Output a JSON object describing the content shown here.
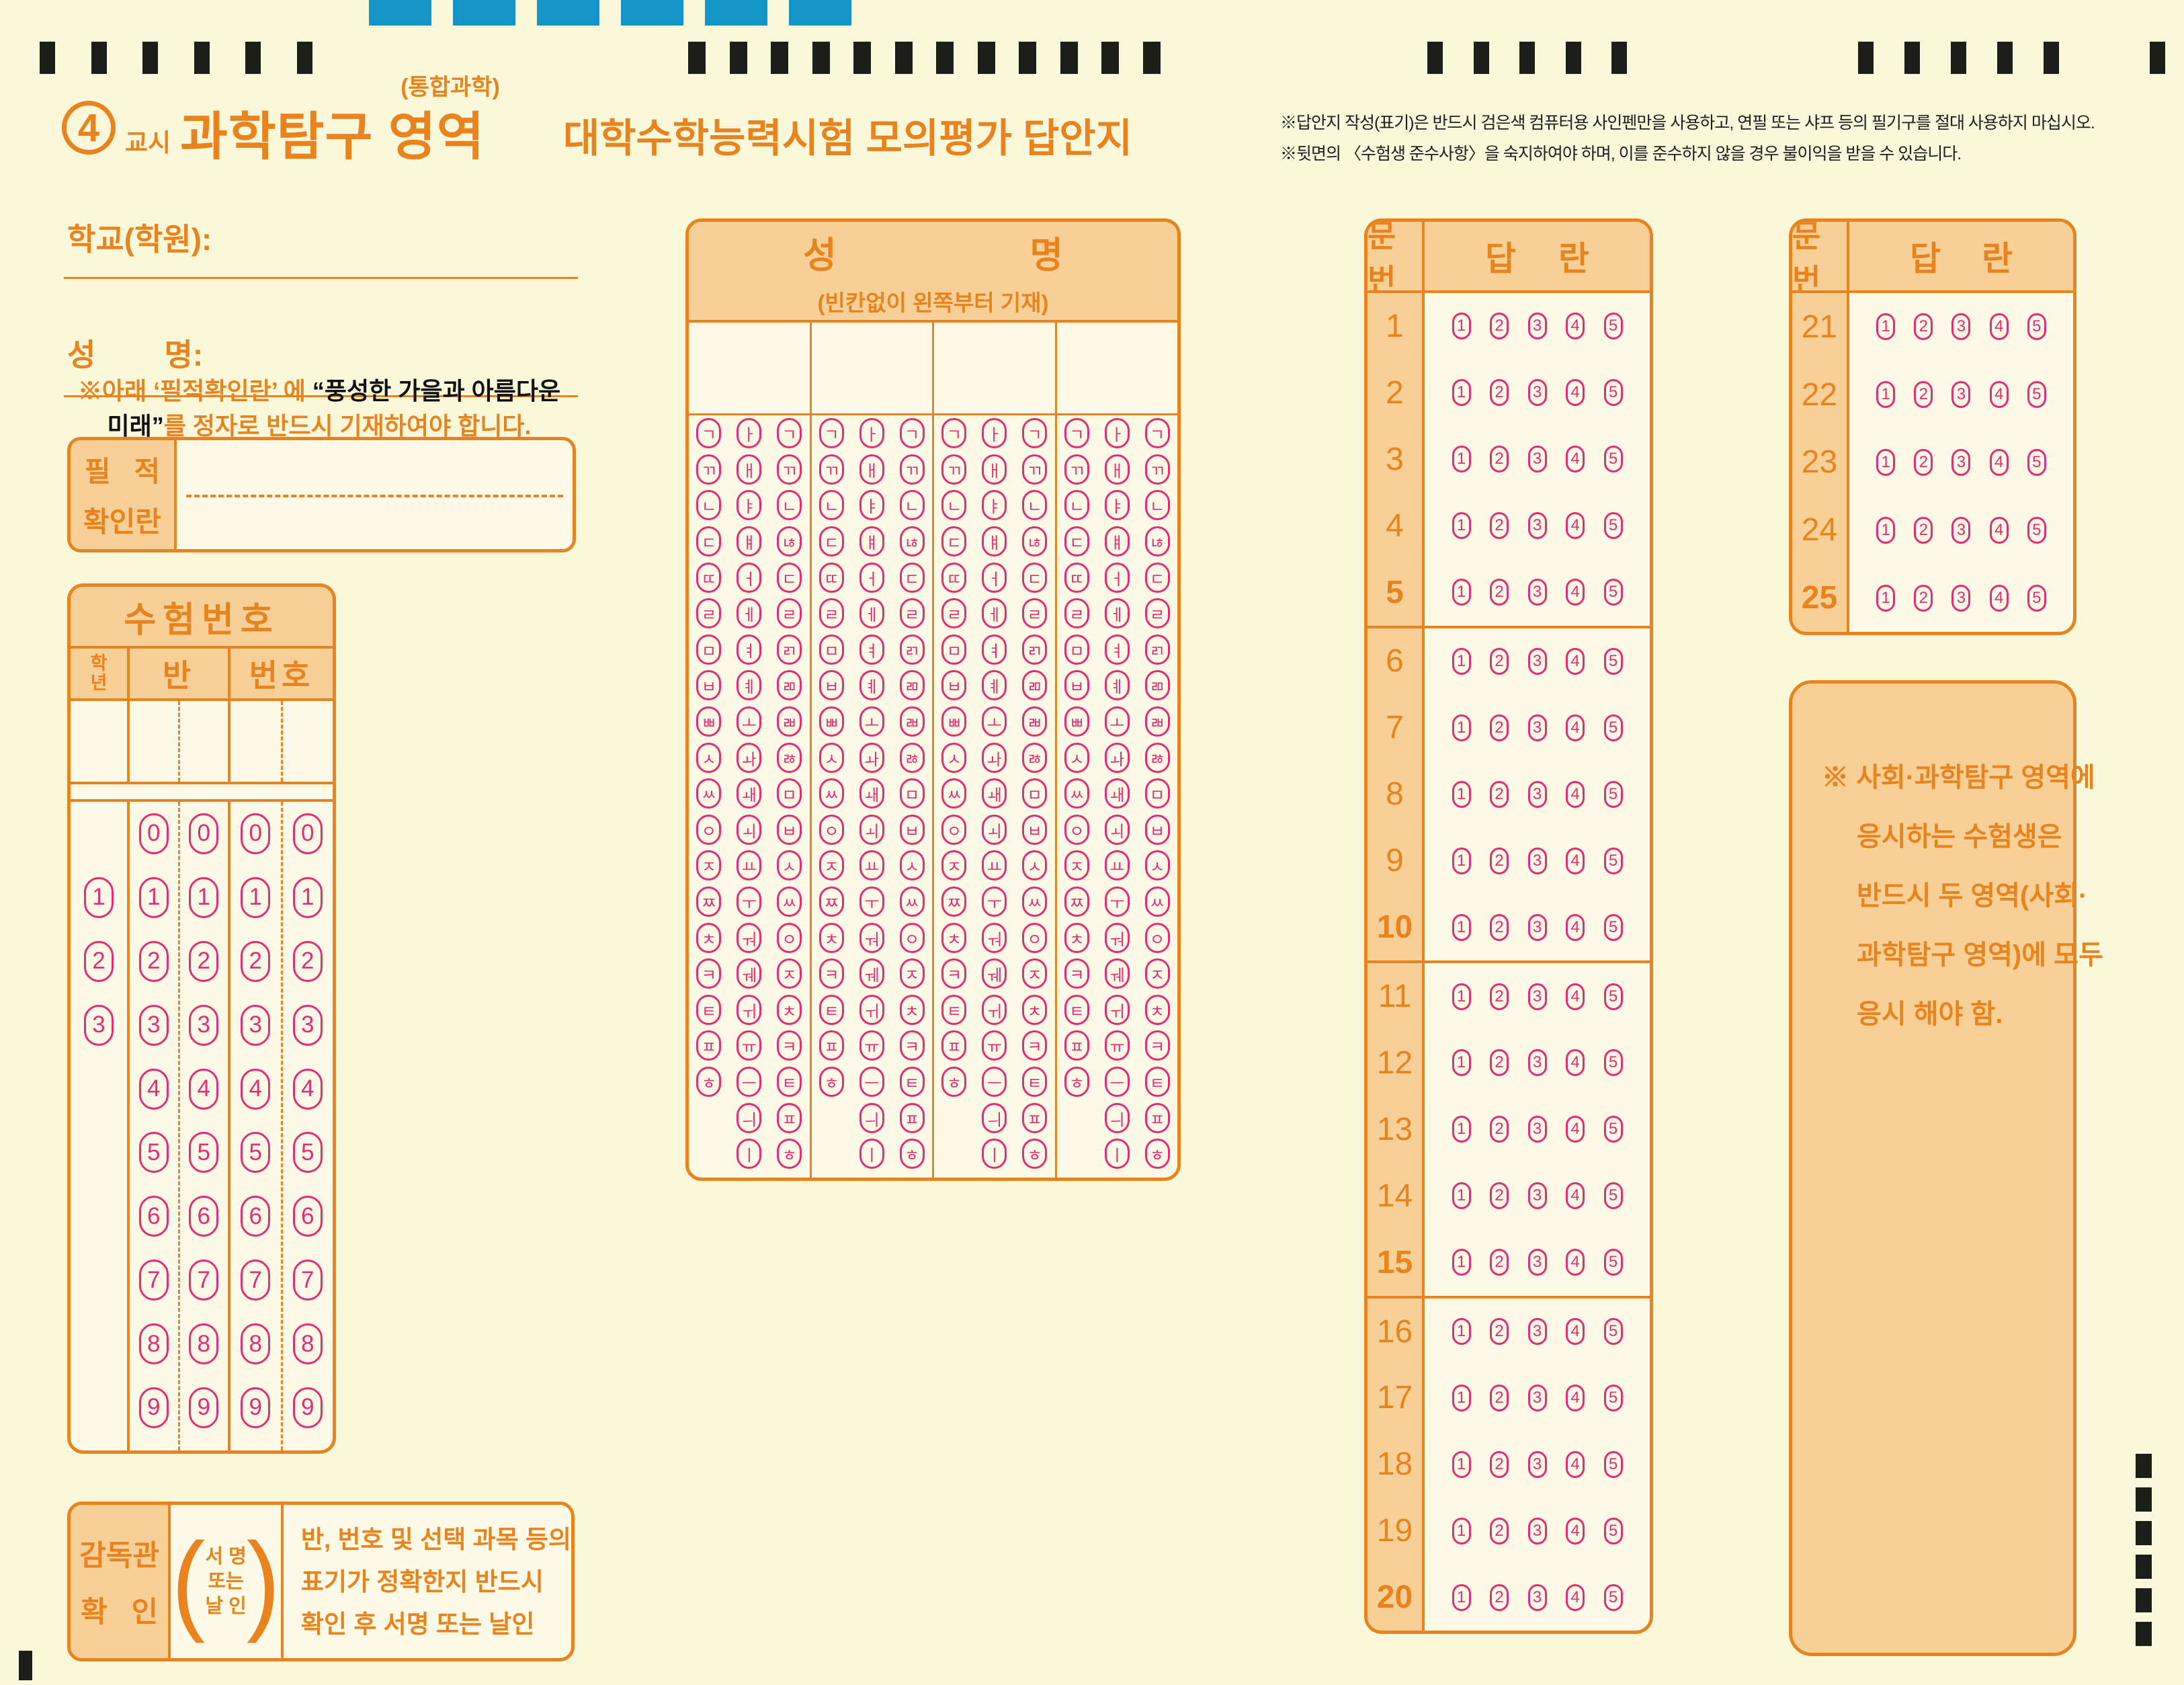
{
  "header": {
    "period_number": "4",
    "period_label": "교시",
    "subject_title": "과학탐구 영역",
    "subject_sub": "(통합과학)",
    "exam_title": "대학수학능력시험  모의평가  답안지",
    "notice_line1": "※답안지 작성(표기)은 반드시 검은색 컴퓨터용 사인펜만을 사용하고, 연필 또는 샤프 등의 필기구를 절대 사용하지 마십시오.",
    "notice_line2": "※뒷면의 〈수험생 준수사항〉을 숙지하여야 하며, 이를 준수하지 않을 경우 불이익을 받을 수 있습니다."
  },
  "student": {
    "school_label": "학교(학원):",
    "name_label": "성        명:",
    "handwriting_notice": {
      "l1_orange": "※아래  ‘필적확인란’ 에 ",
      "l1_black": "“풍성한  가을과  아름다운",
      "l2_black": "미래”",
      "l2_orange": "를  정자로  반드시  기재하여야  합니다."
    },
    "pen_box": {
      "label_line1": "필   적",
      "label_line2": "확인란"
    }
  },
  "exam_number": {
    "title": "수험번호",
    "grade_label_top": "학",
    "grade_label_bottom": "년",
    "class_label": "반",
    "number_label": "번호",
    "grade_digits": [
      "1",
      "2",
      "3"
    ],
    "digits": [
      "0",
      "1",
      "2",
      "3",
      "4",
      "5",
      "6",
      "7",
      "8",
      "9"
    ]
  },
  "name_grid": {
    "title_left": "성",
    "title_right": "명",
    "subtitle": "(빈칸없이  왼쪽부터  기재)",
    "initials": [
      "ㄱ",
      "ㄲ",
      "ㄴ",
      "ㄷ",
      "ㄸ",
      "ㄹ",
      "ㅁ",
      "ㅂ",
      "ㅃ",
      "ㅅ",
      "ㅆ",
      "ㅇ",
      "ㅈ",
      "ㅉ",
      "ㅊ",
      "ㅋ",
      "ㅌ",
      "ㅍ",
      "ㅎ",
      "",
      ""
    ],
    "vowels": [
      "ㅏ",
      "ㅐ",
      "ㅑ",
      "ㅒ",
      "ㅓ",
      "ㅔ",
      "ㅕ",
      "ㅖ",
      "ㅗ",
      "ㅘ",
      "ㅙ",
      "ㅚ",
      "ㅛ",
      "ㅜ",
      "ㅝ",
      "ㅞ",
      "ㅟ",
      "ㅠ",
      "ㅡ",
      "ㅢ",
      "ㅣ"
    ],
    "finals": [
      "ㄱ",
      "ㄲ",
      "ㄴ",
      "ㄶ",
      "ㄷ",
      "ㄹ",
      "ㄺ",
      "ㄻ",
      "ㄼ",
      "ㅀ",
      "ㅁ",
      "ㅂ",
      "ㅅ",
      "ㅆ",
      "ㅇ",
      "ㅈ",
      "ㅊ",
      "ㅋ",
      "ㅌ",
      "ㅍ",
      "ㅎ"
    ]
  },
  "answers": {
    "qnum_header": "문번",
    "answer_header_left": "답",
    "answer_header_right": "란",
    "choices": [
      "1",
      "2",
      "3",
      "4",
      "5"
    ],
    "q1_20": [
      {
        "num": "1"
      },
      {
        "num": "2"
      },
      {
        "num": "3"
      },
      {
        "num": "4"
      },
      {
        "num": "5",
        "bold": true
      },
      {
        "num": "6"
      },
      {
        "num": "7"
      },
      {
        "num": "8"
      },
      {
        "num": "9"
      },
      {
        "num": "10",
        "bold": true
      },
      {
        "num": "11"
      },
      {
        "num": "12"
      },
      {
        "num": "13"
      },
      {
        "num": "14"
      },
      {
        "num": "15",
        "bold": true
      },
      {
        "num": "16"
      },
      {
        "num": "17"
      },
      {
        "num": "18"
      },
      {
        "num": "19"
      },
      {
        "num": "20",
        "bold": true
      }
    ],
    "q21_25": [
      {
        "num": "21"
      },
      {
        "num": "22"
      },
      {
        "num": "23"
      },
      {
        "num": "24"
      },
      {
        "num": "25",
        "bold": true
      }
    ]
  },
  "note_box": {
    "lines": [
      "※ 사회·과학탐구 영역에",
      "응시하는  수험생은",
      "반드시  두  영역(사회·",
      "과학탐구 영역)에  모두",
      "응시 해야 함."
    ]
  },
  "supervisor": {
    "label_line1": "감독관",
    "label_line2": "확   인",
    "paren_line1": "서 명",
    "paren_line2": "또는",
    "paren_line3": "날 인",
    "text_line1": "반, 번호 및 선택 과목 등의",
    "text_line2": "표기가 정확한지 반드시",
    "text_line3": "확인 후 서명 또는 날인"
  },
  "colors": {
    "accent_orange": "#E8831E",
    "panel_fill_orange": "#F6D096",
    "bubble_pink": "#E72B70",
    "page_background": "#FAF8DB",
    "timing_mark_black": "#1D1D1B",
    "top_bar_cyan": "#1494C8"
  }
}
